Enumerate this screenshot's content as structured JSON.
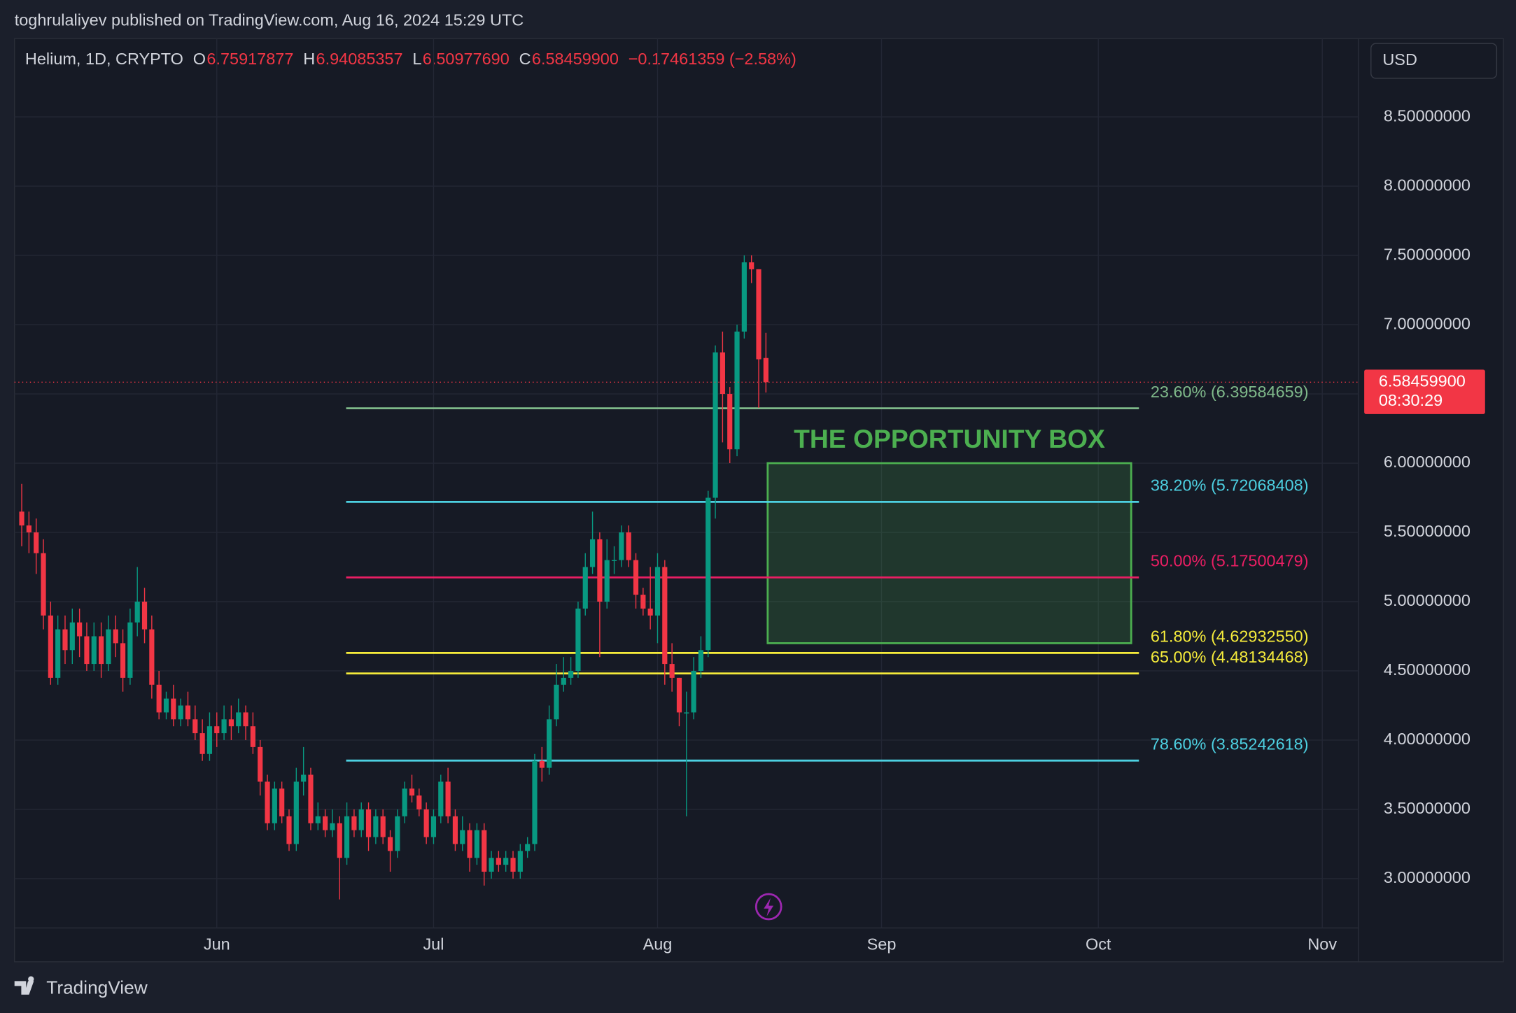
{
  "header": {
    "publisher": "toghrulaliyev published on TradingView.com, Aug 16, 2024 15:29 UTC"
  },
  "footer": {
    "brand": "TradingView"
  },
  "chart_data": {
    "type": "candlestick",
    "symbol": "Helium, 1D, CRYPTO",
    "legend": [
      {
        "key": "O",
        "value": "6.75917877"
      },
      {
        "key": "H",
        "value": "6.94085357"
      },
      {
        "key": "L",
        "value": "6.50977690"
      },
      {
        "key": "C",
        "value": "6.58459900"
      }
    ],
    "change": "−0.17461359 (−2.58%)",
    "currency": "USD",
    "up_color": "#089981",
    "down_color": "#f23645",
    "open": [
      5.65,
      5.55,
      5.5,
      5.35,
      4.9,
      4.45,
      4.8,
      4.65,
      4.85,
      4.75,
      4.55,
      4.75,
      4.55,
      4.8,
      4.7,
      4.45,
      4.85,
      5.0,
      4.8,
      4.4,
      4.2,
      4.3,
      4.15,
      4.25,
      4.15,
      4.05,
      3.9,
      4.1,
      4.05,
      4.15,
      4.1,
      4.2,
      4.1,
      3.95,
      3.7,
      3.4,
      3.65,
      3.45,
      3.25,
      3.7,
      3.75,
      3.4,
      3.45,
      3.35,
      3.4,
      3.15,
      3.45,
      3.35,
      3.5,
      3.3,
      3.45,
      3.3,
      3.2,
      3.45,
      3.65,
      3.6,
      3.5,
      3.3,
      3.45,
      3.7,
      3.45,
      3.25,
      3.35,
      3.15,
      3.35,
      3.05,
      3.15,
      3.1,
      3.15,
      3.05,
      3.2,
      3.25,
      3.85,
      3.8,
      4.15,
      4.4,
      4.45,
      4.5,
      4.95,
      5.25,
      5.45,
      5.0,
      5.3,
      5.3,
      5.5,
      5.3,
      5.05,
      4.95,
      4.9,
      5.25,
      4.55,
      4.45,
      4.2,
      4.2,
      4.5,
      4.65,
      5.75,
      6.8,
      6.5,
      6.1,
      6.95,
      7.45,
      7.4,
      6.75917877
    ],
    "high": [
      5.85,
      5.65,
      5.6,
      5.45,
      5.0,
      4.9,
      4.9,
      4.95,
      4.95,
      4.85,
      4.85,
      4.85,
      4.9,
      4.9,
      4.8,
      4.95,
      5.25,
      5.1,
      4.9,
      4.5,
      4.35,
      4.4,
      4.3,
      4.35,
      4.25,
      4.15,
      4.2,
      4.2,
      4.25,
      4.25,
      4.3,
      4.25,
      4.2,
      4.0,
      3.75,
      3.7,
      3.7,
      3.5,
      3.8,
      3.95,
      3.8,
      3.55,
      3.5,
      3.5,
      3.45,
      3.55,
      3.5,
      3.55,
      3.55,
      3.5,
      3.5,
      3.35,
      3.5,
      3.7,
      3.75,
      3.65,
      3.55,
      3.5,
      3.75,
      3.8,
      3.5,
      3.45,
      3.4,
      3.4,
      3.4,
      3.2,
      3.2,
      3.2,
      3.2,
      3.25,
      3.3,
      3.9,
      3.95,
      4.25,
      4.55,
      4.6,
      4.6,
      5.0,
      5.35,
      5.65,
      5.5,
      5.45,
      5.4,
      5.55,
      5.55,
      5.35,
      5.1,
      5.25,
      5.35,
      5.3,
      4.7,
      4.45,
      4.35,
      4.6,
      4.75,
      5.8,
      6.85,
      6.95,
      6.55,
      7.0,
      7.5,
      7.5,
      7.4,
      6.94085357
    ],
    "low": [
      5.4,
      5.35,
      5.2,
      4.8,
      4.4,
      4.4,
      4.55,
      4.55,
      4.6,
      4.5,
      4.5,
      4.45,
      4.5,
      4.6,
      4.35,
      4.4,
      4.75,
      4.7,
      4.3,
      4.15,
      4.15,
      4.1,
      4.1,
      4.1,
      4.0,
      3.85,
      3.85,
      3.95,
      4.0,
      4.0,
      4.05,
      4.0,
      3.9,
      3.6,
      3.35,
      3.35,
      3.4,
      3.2,
      3.2,
      3.6,
      3.35,
      3.35,
      3.3,
      3.3,
      2.85,
      3.1,
      3.3,
      3.3,
      3.2,
      3.25,
      3.25,
      3.05,
      3.15,
      3.4,
      3.55,
      3.45,
      3.25,
      3.25,
      3.4,
      3.4,
      3.2,
      3.2,
      3.05,
      3.1,
      2.95,
      3.0,
      3.05,
      3.05,
      3.0,
      3.0,
      3.15,
      3.2,
      3.7,
      3.75,
      4.1,
      4.35,
      4.4,
      4.45,
      4.9,
      5.2,
      4.6,
      4.95,
      5.2,
      5.25,
      5.25,
      4.95,
      4.9,
      4.8,
      4.7,
      4.4,
      4.35,
      4.1,
      3.45,
      4.15,
      4.45,
      4.6,
      5.6,
      6.15,
      6.0,
      6.05,
      6.9,
      7.3,
      6.4,
      6.5097769
    ],
    "close": [
      5.55,
      5.5,
      5.35,
      4.9,
      4.45,
      4.8,
      4.65,
      4.85,
      4.75,
      4.55,
      4.75,
      4.55,
      4.8,
      4.7,
      4.45,
      4.85,
      5.0,
      4.8,
      4.4,
      4.2,
      4.3,
      4.15,
      4.25,
      4.15,
      4.05,
      3.9,
      4.1,
      4.05,
      4.15,
      4.1,
      4.2,
      4.1,
      3.95,
      3.7,
      3.4,
      3.65,
      3.45,
      3.25,
      3.7,
      3.75,
      3.4,
      3.45,
      3.35,
      3.4,
      3.15,
      3.45,
      3.35,
      3.5,
      3.3,
      3.45,
      3.3,
      3.2,
      3.45,
      3.65,
      3.6,
      3.5,
      3.3,
      3.45,
      3.7,
      3.45,
      3.25,
      3.35,
      3.15,
      3.35,
      3.05,
      3.15,
      3.1,
      3.15,
      3.05,
      3.2,
      3.25,
      3.85,
      3.8,
      4.15,
      4.4,
      4.45,
      4.5,
      4.95,
      5.25,
      5.45,
      5.0,
      5.3,
      5.3,
      5.5,
      5.3,
      5.05,
      4.95,
      4.9,
      5.25,
      4.55,
      4.45,
      4.2,
      4.2,
      4.5,
      4.65,
      5.75,
      6.8,
      6.5,
      6.1,
      6.95,
      7.45,
      7.4,
      6.75,
      6.584599
    ],
    "xlim": [
      -1,
      185
    ],
    "xticks": [
      {
        "value": 27,
        "label": "Jun"
      },
      {
        "value": 57,
        "label": "Jul"
      },
      {
        "value": 88,
        "label": "Aug"
      },
      {
        "value": 119,
        "label": "Sep"
      },
      {
        "value": 149,
        "label": "Oct"
      },
      {
        "value": 180,
        "label": "Nov"
      }
    ],
    "ylim": [
      2.644,
      9.065
    ],
    "yticks": [
      {
        "value": 3,
        "label": "3.00000000"
      },
      {
        "value": 3.5,
        "label": "3.50000000"
      },
      {
        "value": 4,
        "label": "4.00000000"
      },
      {
        "value": 4.5,
        "label": "4.50000000"
      },
      {
        "value": 5,
        "label": "5.00000000"
      },
      {
        "value": 5.5,
        "label": "5.50000000"
      },
      {
        "value": 6,
        "label": "6.00000000"
      },
      {
        "value": 6.5,
        "label": "6.50000000"
      },
      {
        "value": 7,
        "label": "7.00000000"
      },
      {
        "value": 7.5,
        "label": "7.50000000"
      },
      {
        "value": 8,
        "label": "8.00000000"
      },
      {
        "value": 8.5,
        "label": "8.50000000"
      }
    ],
    "grid": true,
    "last_price": {
      "label": "6.58459900",
      "countdown": "08:30:29",
      "color": "#f23645"
    },
    "fib_levels": [
      {
        "value": 6.39584659,
        "label": "23.60% (6.39584659)",
        "color": "#7fb98a"
      },
      {
        "value": 5.72068408,
        "label": "38.20% (5.72068408)",
        "color": "#4dd0e1"
      },
      {
        "value": 5.17500479,
        "label": "50.00% (5.17500479)",
        "color": "#e91e63"
      },
      {
        "value": 4.6293255,
        "label": "61.80% (4.62932550)",
        "color": "#f5eb3b"
      },
      {
        "value": 4.48134468,
        "label": "65.00% (4.48134468)",
        "color": "#f5eb3b"
      },
      {
        "value": 3.85242618,
        "label": "78.60% (3.85242618)",
        "color": "#4dd0e1"
      }
    ],
    "box": {
      "title": "THE OPPORTUNITY BOX",
      "top": 6.0,
      "bottom": 4.7,
      "color": "#4caf50"
    }
  }
}
